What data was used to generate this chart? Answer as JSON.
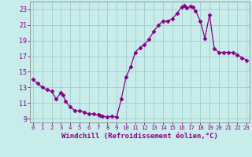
{
  "x": [
    0,
    0.5,
    1,
    1.5,
    2,
    2.5,
    3,
    3.25,
    3.5,
    4,
    4.5,
    5,
    5.5,
    6,
    6.5,
    7,
    7.25,
    7.5,
    8,
    8.5,
    9,
    9.5,
    10,
    10.5,
    11,
    11.5,
    12,
    12.5,
    13,
    13.5,
    14,
    14.5,
    15,
    15.5,
    16,
    16.25,
    16.5,
    17,
    17.25,
    17.5,
    18,
    18.5,
    19,
    19.5,
    20,
    20.5,
    21,
    21.5,
    22,
    22.5,
    23
  ],
  "y": [
    14.0,
    13.5,
    13.0,
    12.7,
    12.5,
    11.5,
    12.3,
    12.0,
    11.2,
    10.5,
    10.0,
    10.0,
    9.8,
    9.6,
    9.6,
    9.5,
    9.4,
    9.3,
    9.2,
    9.3,
    9.2,
    11.5,
    14.3,
    15.6,
    17.5,
    18.1,
    18.5,
    19.2,
    20.2,
    21.0,
    21.5,
    21.5,
    21.8,
    22.5,
    23.3,
    23.5,
    23.2,
    23.4,
    23.3,
    22.8,
    21.5,
    19.3,
    22.3,
    18.0,
    17.5,
    17.5,
    17.5,
    17.5,
    17.2,
    16.8,
    16.5
  ],
  "line_color": "#880088",
  "marker": "d",
  "marker_size": 2.5,
  "bg_color": "#c8ecea",
  "grid_color": "#a0cece",
  "axis_color": "#555555",
  "tick_color": "#880088",
  "xlabel": "Windchill (Refroidissement éolien,°C)",
  "xlim": [
    -0.3,
    23.3
  ],
  "ylim": [
    8.5,
    24.0
  ],
  "yticks": [
    9,
    11,
    13,
    15,
    17,
    19,
    21,
    23
  ],
  "xticks": [
    0,
    1,
    2,
    3,
    4,
    5,
    6,
    7,
    8,
    9,
    10,
    11,
    12,
    13,
    14,
    15,
    16,
    17,
    18,
    19,
    20,
    21,
    22,
    23
  ],
  "xlabel_fontsize": 6.5,
  "tick_fontsize": 6.0,
  "line_width": 0.9
}
